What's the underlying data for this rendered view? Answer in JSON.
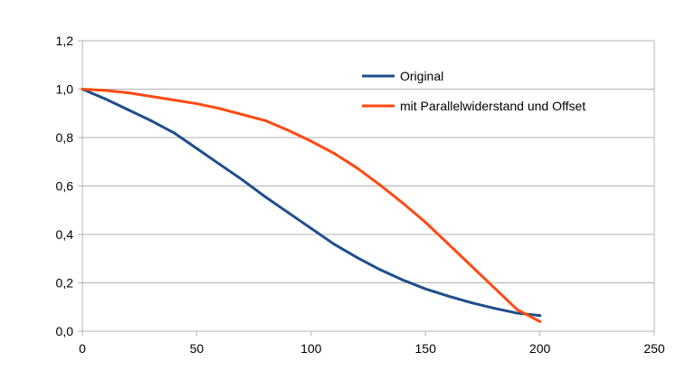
{
  "chart_data": {
    "type": "line",
    "title": "",
    "xlabel": "",
    "ylabel": "",
    "xlim": [
      0,
      250
    ],
    "ylim": [
      0,
      1.2
    ],
    "x_ticks": [
      0,
      50,
      100,
      150,
      200,
      250
    ],
    "y_ticks": [
      0,
      0.2,
      0.4,
      0.6,
      0.8,
      1.0,
      1.2
    ],
    "x_tick_labels": [
      "0",
      "50",
      "100",
      "150",
      "200",
      "250"
    ],
    "y_tick_labels": [
      "0,0",
      "0,2",
      "0,4",
      "0,6",
      "0,8",
      "1,0",
      "1,2"
    ],
    "grid": "horizontal",
    "legend_position": "top-right",
    "series": [
      {
        "name": "Original",
        "color": "#1f4e8c",
        "points": [
          [
            0,
            1.0
          ],
          [
            10,
            0.96
          ],
          [
            20,
            0.915
          ],
          [
            30,
            0.87
          ],
          [
            40,
            0.82
          ],
          [
            50,
            0.755
          ],
          [
            60,
            0.69
          ],
          [
            70,
            0.625
          ],
          [
            80,
            0.555
          ],
          [
            90,
            0.49
          ],
          [
            100,
            0.425
          ],
          [
            110,
            0.36
          ],
          [
            120,
            0.305
          ],
          [
            130,
            0.255
          ],
          [
            140,
            0.212
          ],
          [
            150,
            0.175
          ],
          [
            160,
            0.145
          ],
          [
            170,
            0.118
          ],
          [
            180,
            0.095
          ],
          [
            190,
            0.075
          ],
          [
            200,
            0.065
          ]
        ]
      },
      {
        "name": "mit Parallelwiderstand und Offset",
        "color": "#ff4a12",
        "points": [
          [
            0,
            1.0
          ],
          [
            10,
            0.995
          ],
          [
            20,
            0.985
          ],
          [
            30,
            0.97
          ],
          [
            40,
            0.955
          ],
          [
            50,
            0.94
          ],
          [
            60,
            0.92
          ],
          [
            70,
            0.895
          ],
          [
            80,
            0.87
          ],
          [
            90,
            0.83
          ],
          [
            100,
            0.785
          ],
          [
            110,
            0.735
          ],
          [
            120,
            0.675
          ],
          [
            130,
            0.605
          ],
          [
            140,
            0.53
          ],
          [
            150,
            0.45
          ],
          [
            160,
            0.36
          ],
          [
            170,
            0.27
          ],
          [
            180,
            0.18
          ],
          [
            190,
            0.09
          ],
          [
            200,
            0.04
          ]
        ]
      }
    ]
  }
}
